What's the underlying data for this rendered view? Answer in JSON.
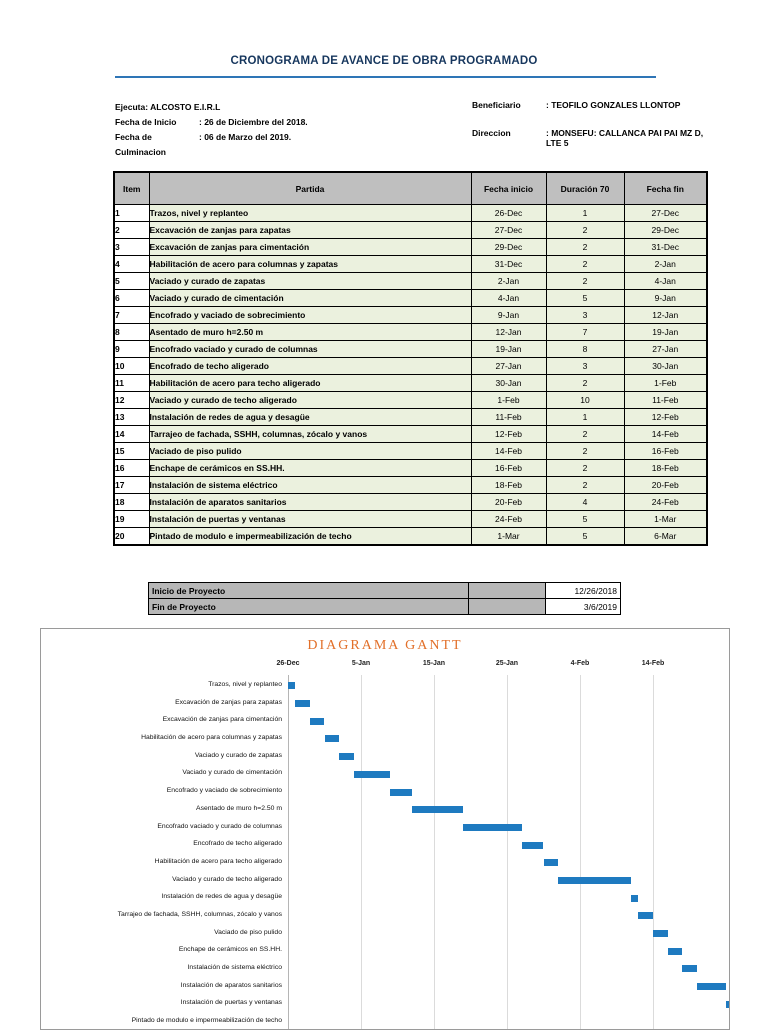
{
  "doc": {
    "title": "CRONOGRAMA DE AVANCE DE OBRA PROGRAMADO"
  },
  "meta": {
    "ejecuta": "Ejecuta: ALCOSTO E.I.R.L",
    "inicio_label": "Fecha de Inicio",
    "inicio_value": ": 26 de Diciembre del 2018.",
    "culminacion_label": "Fecha de Culminacion",
    "culminacion_value": ": 06 de Marzo del 2019.",
    "beneficiario_label": "Beneficiario",
    "beneficiario_value": ": TEOFILO GONZALES LLONTOP",
    "direccion_label": "Direccion",
    "direccion_value": ": MONSEFU: CALLANCA PAI PAI MZ D, LTE 5"
  },
  "schedule_table": {
    "headers": [
      "Item",
      "Partida",
      "Fecha inicio",
      "Duración 70",
      "Fecha fin"
    ],
    "rows": [
      [
        "1",
        "Trazos, nivel y replanteo",
        "26-Dec",
        "1",
        "27-Dec"
      ],
      [
        "2",
        "Excavación de zanjas para zapatas",
        "27-Dec",
        "2",
        "29-Dec"
      ],
      [
        "3",
        "Excavación de zanjas para cimentación",
        "29-Dec",
        "2",
        "31-Dec"
      ],
      [
        "4",
        "Habilitación de acero para columnas y zapatas",
        "31-Dec",
        "2",
        "2-Jan"
      ],
      [
        "5",
        "Vaciado y curado de zapatas",
        "2-Jan",
        "2",
        "4-Jan"
      ],
      [
        "6",
        "Vaciado y curado de cimentación",
        "4-Jan",
        "5",
        "9-Jan"
      ],
      [
        "7",
        "Encofrado y vaciado de sobrecimiento",
        "9-Jan",
        "3",
        "12-Jan"
      ],
      [
        "8",
        "Asentado de muro h=2.50 m",
        "12-Jan",
        "7",
        "19-Jan"
      ],
      [
        "9",
        "Encofrado vaciado y curado de columnas",
        "19-Jan",
        "8",
        "27-Jan"
      ],
      [
        "10",
        "Encofrado de techo aligerado",
        "27-Jan",
        "3",
        "30-Jan"
      ],
      [
        "11",
        "Habilitación de acero para techo aligerado",
        "30-Jan",
        "2",
        "1-Feb"
      ],
      [
        "12",
        "Vaciado y curado de techo aligerado",
        "1-Feb",
        "10",
        "11-Feb"
      ],
      [
        "13",
        "Instalación de redes de agua y desagüe",
        "11-Feb",
        "1",
        "12-Feb"
      ],
      [
        "14",
        "Tarrajeo de fachada, SSHH, columnas, zócalo y vanos",
        "12-Feb",
        "2",
        "14-Feb"
      ],
      [
        "15",
        "Vaciado de piso pulido",
        "14-Feb",
        "2",
        "16-Feb"
      ],
      [
        "16",
        "Enchape de cerámicos en SS.HH.",
        "16-Feb",
        "2",
        "18-Feb"
      ],
      [
        "17",
        "Instalación de sistema eléctrico",
        "18-Feb",
        "2",
        "20-Feb"
      ],
      [
        "18",
        "Instalación de aparatos sanitarios",
        "20-Feb",
        "4",
        "24-Feb"
      ],
      [
        "19",
        "Instalación de puertas y ventanas",
        "24-Feb",
        "5",
        "1-Mar"
      ],
      [
        "20",
        "Pintado de modulo e impermeabilización de techo",
        "1-Mar",
        "5",
        "6-Mar"
      ]
    ]
  },
  "summary": {
    "rows": [
      {
        "label": "Inicio de Proyecto",
        "value": "12/26/2018"
      },
      {
        "label": "Fin de Proyecto",
        "value": "3/6/2019"
      }
    ]
  },
  "chart_data": {
    "type": "bar",
    "subtype": "gantt",
    "title": "DIAGRAMA GANTT",
    "title_color": "#E2702A",
    "bar_color": "#1E7AC0",
    "x_ticks": [
      "26-Dec",
      "5-Jan",
      "15-Jan",
      "25-Jan",
      "4-Feb",
      "14-Feb"
    ],
    "x_tick_days": [
      0,
      10,
      20,
      30,
      40,
      50
    ],
    "x_axis_start_date": "26-Dec",
    "tasks": [
      {
        "name": "Trazos, nivel y replanteo",
        "start_day": 0,
        "duration": 1
      },
      {
        "name": "Excavación de zanjas para zapatas",
        "start_day": 1,
        "duration": 2
      },
      {
        "name": "Excavación de zanjas para cimentación",
        "start_day": 3,
        "duration": 2
      },
      {
        "name": "Habilitación de acero para columnas y zapatas",
        "start_day": 5,
        "duration": 2
      },
      {
        "name": "Vaciado y curado de zapatas",
        "start_day": 7,
        "duration": 2
      },
      {
        "name": "Vaciado y curado de cimentación",
        "start_day": 9,
        "duration": 5
      },
      {
        "name": "Encofrado y vaciado de sobrecimiento",
        "start_day": 14,
        "duration": 3
      },
      {
        "name": "Asentado de muro h=2.50 m",
        "start_day": 17,
        "duration": 7
      },
      {
        "name": "Encofrado vaciado y curado de columnas",
        "start_day": 24,
        "duration": 8
      },
      {
        "name": "Encofrado de techo aligerado",
        "start_day": 32,
        "duration": 3
      },
      {
        "name": "Habilitación de acero para techo aligerado",
        "start_day": 35,
        "duration": 2
      },
      {
        "name": "Vaciado y curado de techo aligerado",
        "start_day": 37,
        "duration": 10
      },
      {
        "name": "Instalación de redes de agua y desagüe",
        "start_day": 47,
        "duration": 1
      },
      {
        "name": "Tarrajeo de fachada, SSHH, columnas, zócalo y vanos",
        "start_day": 48,
        "duration": 2
      },
      {
        "name": "Vaciado de piso pulido",
        "start_day": 50,
        "duration": 2
      },
      {
        "name": "Enchape de cerámicos en SS.HH.",
        "start_day": 52,
        "duration": 2
      },
      {
        "name": "Instalación de sistema eléctrico",
        "start_day": 54,
        "duration": 2
      },
      {
        "name": "Instalación de aparatos sanitarios",
        "start_day": 56,
        "duration": 4
      },
      {
        "name": "Instalación de puertas y ventanas",
        "start_day": 60,
        "duration": 5
      },
      {
        "name": "Pintado de modulo e impermeabilización de techo",
        "start_day": 65,
        "duration": 5
      }
    ]
  }
}
